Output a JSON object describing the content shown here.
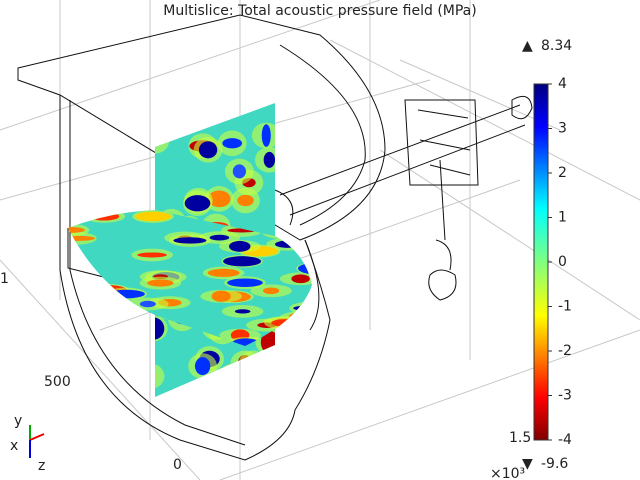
{
  "title": "Multislice: Total acoustic pressure field (MPa)",
  "colorbar": {
    "ticks": [
      4,
      3,
      2,
      1,
      0,
      -1,
      -2,
      -3,
      -4
    ],
    "max_label": "8.34",
    "min_label": "-9.6"
  },
  "axis_labels": [
    "1",
    "500",
    "0",
    "1.5"
  ],
  "exponent_label": "×10³",
  "triad": {
    "y": "y",
    "x": "x",
    "z": "z"
  }
}
